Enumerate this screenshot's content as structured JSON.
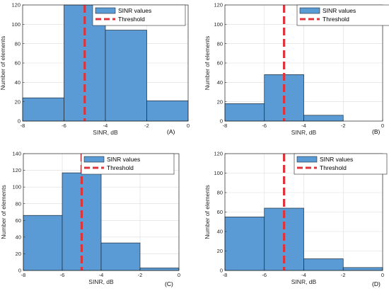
{
  "colors": {
    "bar_fill": "#5b9bd5",
    "bar_edge": "#1f2a36",
    "threshold": "#e0343c",
    "grid": "#dcdcdc",
    "axis": "#262626"
  },
  "chart_data": [
    {
      "type": "bar",
      "panel_label": "(A)",
      "bin_edges": [
        -8,
        -6,
        -4,
        -2,
        0
      ],
      "values": [
        24,
        120,
        94,
        21
      ],
      "threshold_x": -5,
      "xlim": [
        -8,
        0
      ],
      "ylim": [
        0,
        120
      ],
      "xticks": [
        "-8",
        "-6",
        "-4",
        "-2",
        "0"
      ],
      "yticks": [
        "0",
        "20",
        "40",
        "60",
        "80",
        "100",
        "120"
      ],
      "xlabel": "SINR, dB",
      "ylabel": "Number of elements",
      "legend": [
        "SINR values",
        "Threshold"
      ],
      "legend_position": "top-right",
      "grid": true
    },
    {
      "type": "bar",
      "panel_label": "(B)",
      "bin_edges": [
        -8,
        -6,
        -4,
        -2,
        0
      ],
      "values": [
        18,
        48,
        6,
        0
      ],
      "threshold_x": -5,
      "xlim": [
        -8,
        0
      ],
      "ylim": [
        0,
        120
      ],
      "xticks": [
        "-8",
        "-6",
        "-4",
        "-2",
        "0"
      ],
      "yticks": [
        "0",
        "20",
        "40",
        "60",
        "80",
        "100",
        "120"
      ],
      "xlabel": "SINR, dB",
      "ylabel": "Number of elements",
      "legend": [
        "SINR values",
        "Threshold"
      ],
      "legend_position": "top-right",
      "grid": true
    },
    {
      "type": "bar",
      "panel_label": "(C)",
      "bin_edges": [
        -8,
        -6,
        -4,
        -2,
        0
      ],
      "values": [
        66,
        117,
        33,
        3
      ],
      "threshold_x": -5,
      "xlim": [
        -8,
        0
      ],
      "ylim": [
        0,
        140
      ],
      "xticks": [
        "-8",
        "-6",
        "-4",
        "-2",
        "0"
      ],
      "yticks": [
        "0",
        "20",
        "40",
        "60",
        "80",
        "100",
        "120",
        "140"
      ],
      "xlabel": "SINR, dB",
      "ylabel": "Number of elements",
      "legend": [
        "SINR values",
        "Threshold"
      ],
      "legend_position": "top-right",
      "grid": true
    },
    {
      "type": "bar",
      "panel_label": "(D)",
      "bin_edges": [
        -8,
        -6,
        -4,
        -2,
        0
      ],
      "values": [
        55,
        64,
        12,
        3
      ],
      "threshold_x": -5,
      "xlim": [
        -8,
        0
      ],
      "ylim": [
        0,
        120
      ],
      "xticks": [
        "-8",
        "-6",
        "-4",
        "-2",
        "0"
      ],
      "yticks": [
        "0",
        "20",
        "40",
        "60",
        "80",
        "100",
        "120"
      ],
      "xlabel": "SINR, dB",
      "ylabel": "Number of elements",
      "legend": [
        "SINR values",
        "Threshold"
      ],
      "legend_position": "top-right",
      "grid": true
    }
  ]
}
